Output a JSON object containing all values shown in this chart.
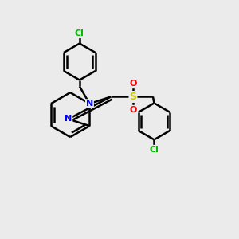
{
  "background_color": "#ebebeb",
  "bond_color": "#000000",
  "bond_width": 1.8,
  "atom_colors": {
    "N": "#0000ff",
    "S": "#cccc00",
    "O": "#ff0000",
    "Cl": "#00bb00",
    "C": "#000000"
  },
  "figsize": [
    3.0,
    3.0
  ],
  "dpi": 100
}
